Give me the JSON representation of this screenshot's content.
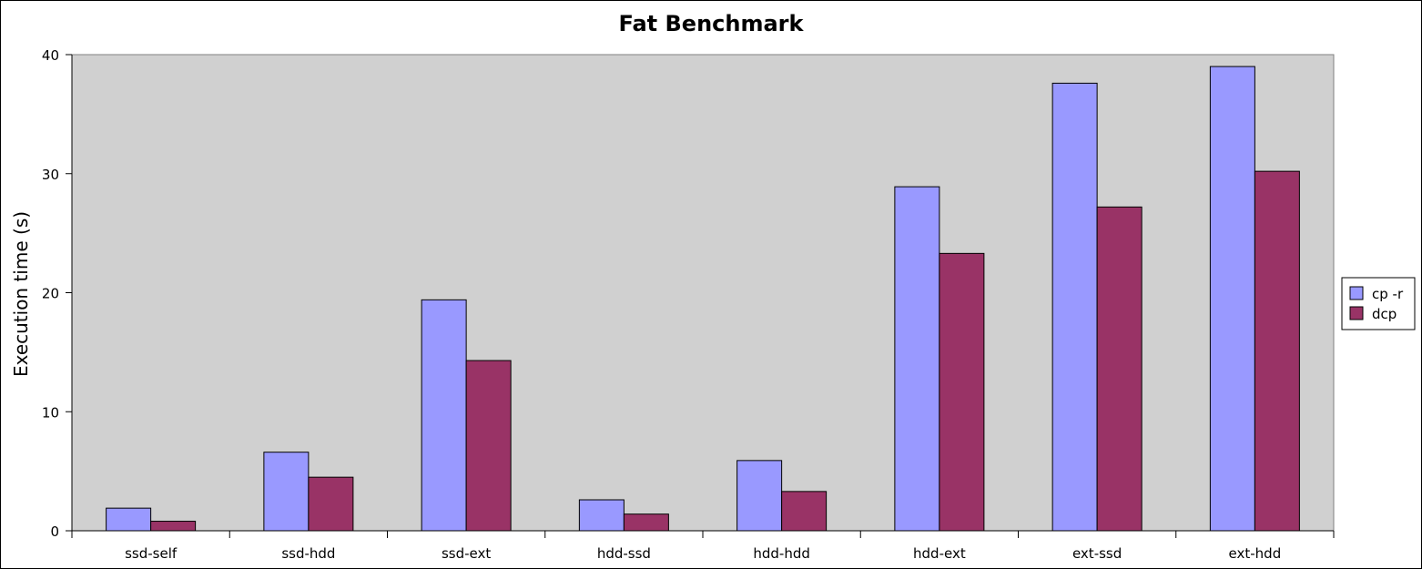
{
  "chart_data": {
    "type": "bar",
    "title": "Fat Benchmark",
    "xlabel": "",
    "ylabel": "Execution time (s)",
    "categories": [
      "ssd-self",
      "ssd-hdd",
      "ssd-ext",
      "hdd-ssd",
      "hdd-hdd",
      "hdd-ext",
      "ext-ssd",
      "ext-hdd"
    ],
    "series": [
      {
        "name": "cp -r",
        "color": "#9999ff",
        "values": [
          1.9,
          6.6,
          19.4,
          2.6,
          5.9,
          28.9,
          37.6,
          39.0
        ]
      },
      {
        "name": "dcp",
        "color": "#993366",
        "values": [
          0.8,
          4.5,
          14.3,
          1.4,
          3.3,
          23.3,
          27.2,
          30.2
        ]
      }
    ],
    "ylim": [
      0,
      40
    ],
    "yticks": [
      0,
      10,
      20,
      30,
      40
    ],
    "grid": false,
    "plot_background": "#d0d0d0",
    "legend_position": "right"
  }
}
